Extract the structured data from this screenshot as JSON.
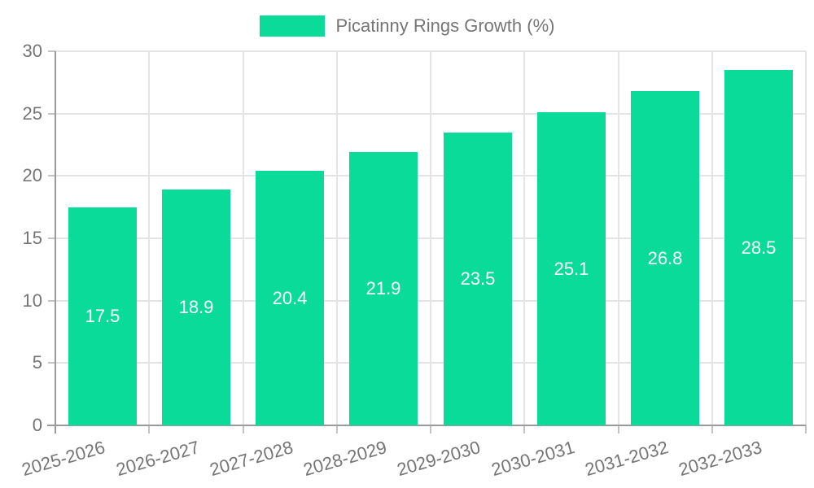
{
  "chart_data": {
    "type": "bar",
    "title": "",
    "legend": "Picatinny Rings Growth (%)",
    "categories": [
      "2025-2026",
      "2026-2027",
      "2027-2028",
      "2028-2029",
      "2029-2030",
      "2030-2031",
      "2031-2032",
      "2032-2033"
    ],
    "values": [
      17.5,
      18.9,
      20.4,
      21.9,
      23.5,
      25.1,
      26.8,
      28.5
    ],
    "value_labels": [
      "17.5",
      "18.9",
      "20.4",
      "21.9",
      "23.5",
      "25.1",
      "26.8",
      "28.5"
    ],
    "xlabel": "",
    "ylabel": "",
    "ylim": [
      0,
      30
    ],
    "yticks": [
      0,
      5,
      10,
      15,
      20,
      25,
      30
    ],
    "ytick_labels": [
      "0",
      "5",
      "10",
      "15",
      "20",
      "25",
      "30"
    ],
    "grid": "on",
    "legend_position": "top-center",
    "colors": {
      "bar": "#0bdb98",
      "value_text": "#ffffff",
      "axis_text": "#757575",
      "legend_text": "#757575",
      "gridline": "#e4e4e4",
      "axis_line": "#9a9a9a",
      "tick_mark": "#c4c4c4",
      "background": "#ffffff"
    }
  }
}
